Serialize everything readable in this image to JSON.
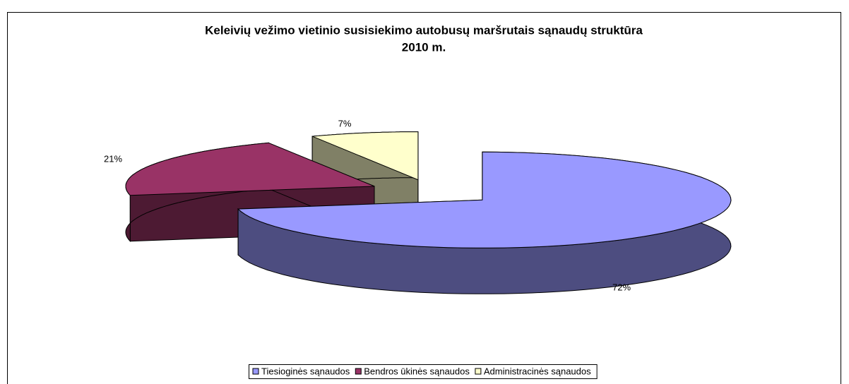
{
  "chart_data": {
    "type": "pie3d",
    "title": [
      "Keleivių vežimo vietinio susisiekimo autobusų maršrutais sąnaudų struktūra",
      "2010 m."
    ],
    "categories": [
      "Tiesioginės sąnaudos",
      "Bendros ūkinės sąnaudos",
      "Administracinės sąnaudos"
    ],
    "values": [
      72,
      21,
      7
    ],
    "value_labels": [
      "72%",
      "21%",
      "7%"
    ],
    "colors": [
      "#9999ff",
      "#993366",
      "#ffffcc"
    ],
    "legend": "bottom"
  }
}
